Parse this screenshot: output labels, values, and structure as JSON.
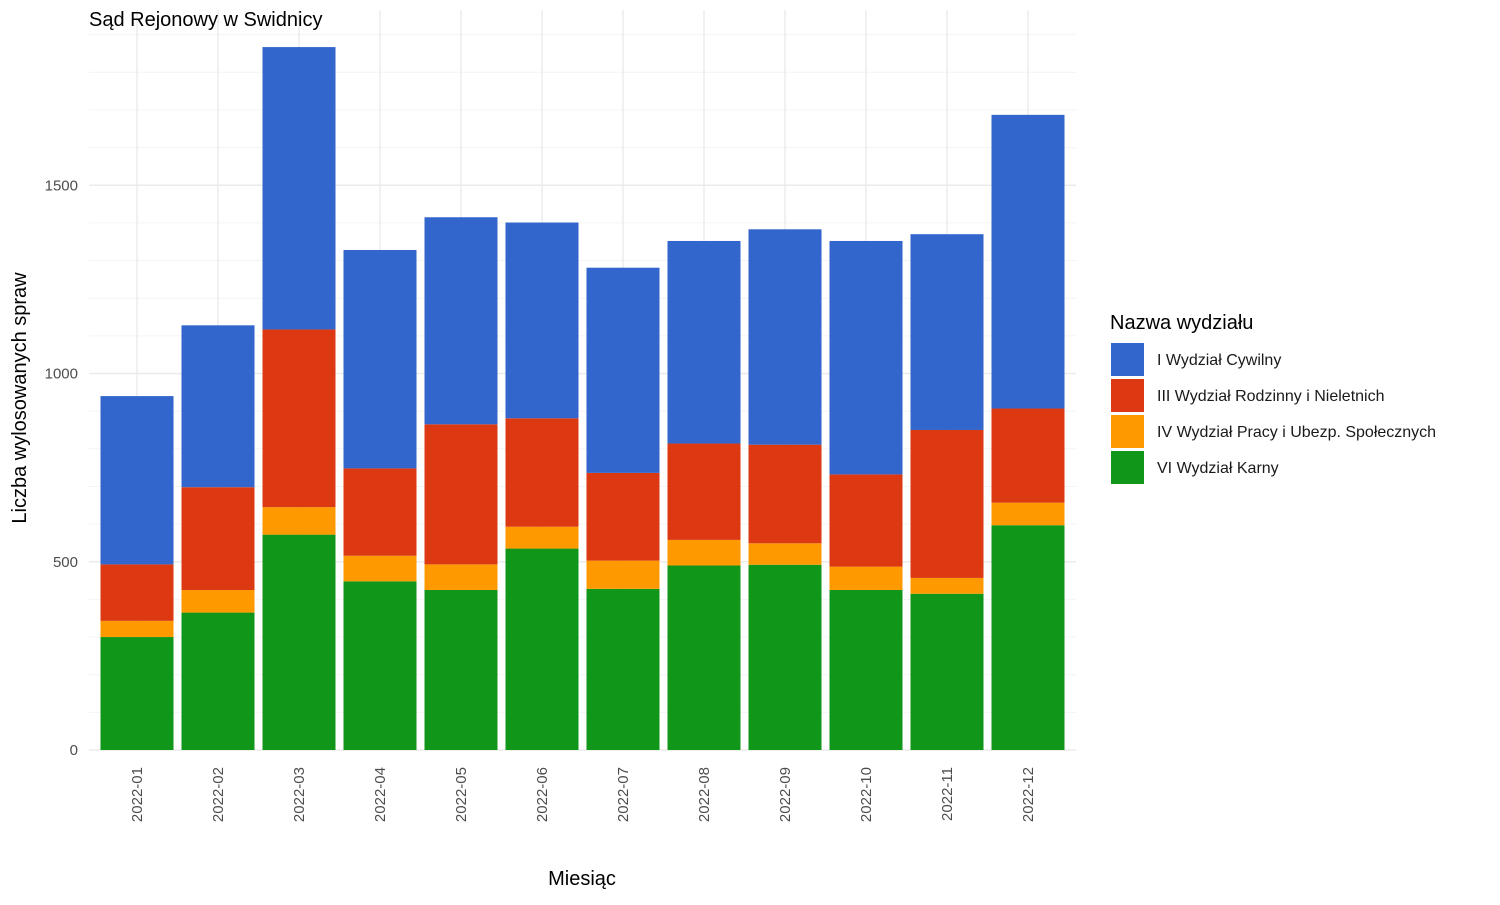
{
  "chart_data": {
    "type": "bar",
    "stacked": true,
    "title": "Sąd Rejonowy w Swidnicy",
    "xlabel": "Miesiąc",
    "ylabel": "Liczba wylosowanych spraw",
    "ylim": [
      0,
      1900
    ],
    "y_ticks": [
      0,
      500,
      1000,
      1500
    ],
    "grid": true,
    "legend_title": "Nazwa wydziału",
    "legend_position": "right",
    "categories": [
      "2022-01",
      "2022-02",
      "2022-03",
      "2022-04",
      "2022-05",
      "2022-06",
      "2022-07",
      "2022-08",
      "2022-09",
      "2022-10",
      "2022-11",
      "2022-12"
    ],
    "series": [
      {
        "name": "VI Wydział Karny",
        "color": "#109618",
        "values": [
          300,
          365,
          572,
          448,
          425,
          535,
          428,
          490,
          492,
          425,
          415,
          597
        ]
      },
      {
        "name": "IV Wydział Pracy i Ubezp. Społecznych",
        "color": "#ff9900",
        "values": [
          43,
          60,
          73,
          68,
          68,
          58,
          75,
          68,
          57,
          62,
          42,
          60
        ]
      },
      {
        "name": "III Wydział Rodzinny i Nieletnich",
        "color": "#dc3912",
        "values": [
          150,
          273,
          472,
          232,
          372,
          288,
          233,
          256,
          262,
          245,
          393,
          250
        ]
      },
      {
        "name": "I Wydział Cywilny",
        "color": "#3366cc",
        "values": [
          447,
          430,
          750,
          580,
          550,
          520,
          545,
          538,
          572,
          620,
          520,
          780
        ]
      }
    ],
    "legend_order": [
      "I Wydział Cywilny",
      "III Wydział Rodzinny i Nieletnich",
      "IV Wydział Pracy i Ubezp. Społecznych",
      "VI Wydział Karny"
    ]
  }
}
